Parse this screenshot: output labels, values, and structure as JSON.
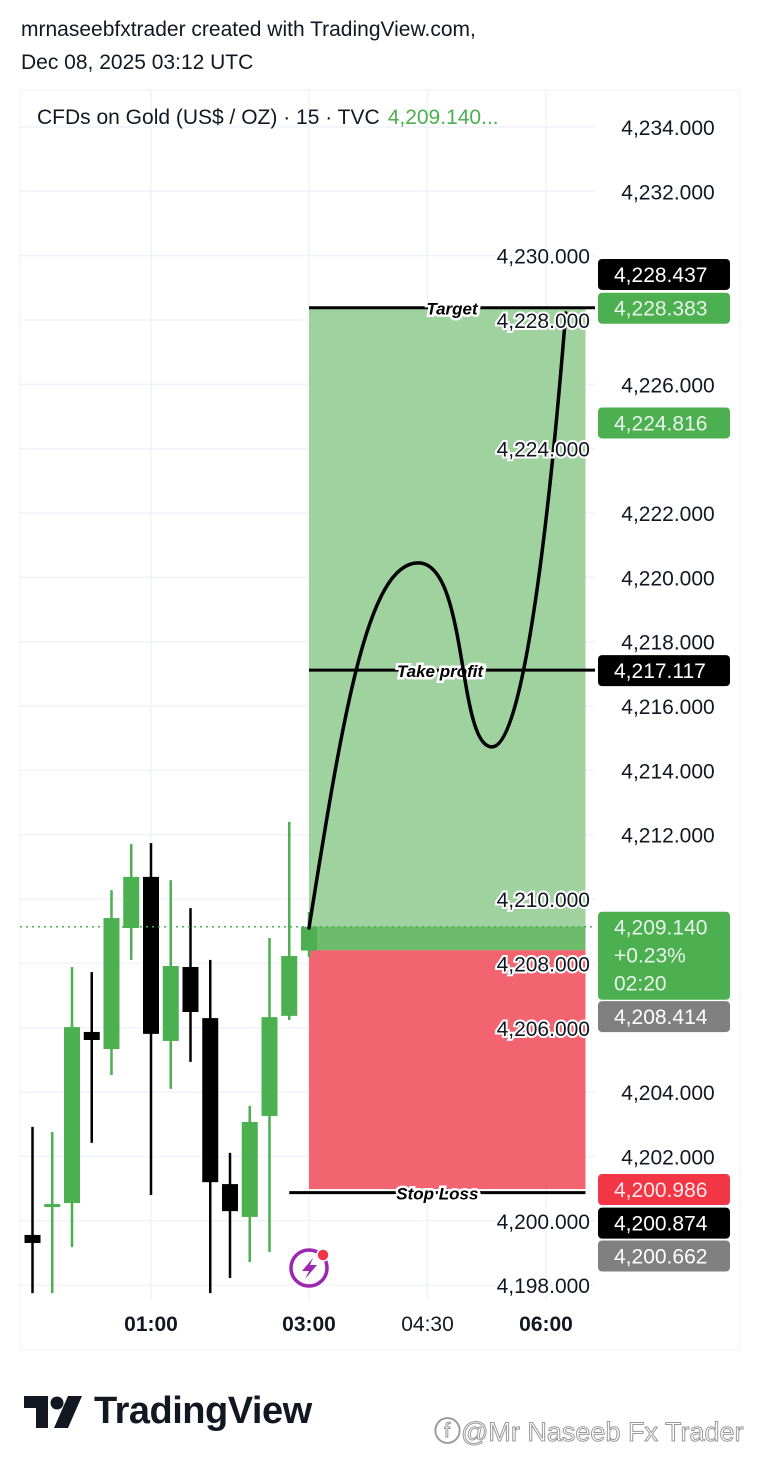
{
  "header": {
    "line1": "mrnaseebfxtrader created with TradingView.com,",
    "line2": "Dec 08, 2025 03:12 UTC"
  },
  "legend": {
    "symbol": "CFDs on Gold (US$ / OZ) · 15 · TVC",
    "price": "4,209.140..."
  },
  "footer": {
    "logo_text": "TradingView",
    "watermark": "@Mr Naseeb Fx Trader"
  },
  "colors": {
    "up": "#4caf50",
    "down": "#000000",
    "profit_zone": "#9fd29e",
    "loss_zone": "#f2646f",
    "stop_label": "#f23645",
    "gray_label": "#808080",
    "grid": "#f0f3fa"
  },
  "icons": {
    "alert": "lightning-bolt-icon"
  },
  "chart_data": {
    "type": "candlestick",
    "timeframe": "15",
    "ylim": [
      4198,
      4234
    ],
    "yticks": [
      "4,234.000",
      "4,232.000",
      "4,230.000",
      "4,228.000",
      "4,226.000",
      "4,224.000",
      "4,222.000",
      "4,220.000",
      "4,218.000",
      "4,216.000",
      "4,214.000",
      "4,212.000",
      "4,210.000",
      "4,208.000",
      "4,206.000",
      "4,204.000",
      "4,202.000",
      "4,200.000",
      "4,198.000"
    ],
    "xticks": [
      {
        "time": "01:00",
        "bold": true
      },
      {
        "time": "03:00",
        "bold": true
      },
      {
        "time": "04:30",
        "bold": false
      },
      {
        "time": "06:00",
        "bold": true
      }
    ],
    "candles": [
      {
        "t": "23:30",
        "o": 4199.56,
        "h": 4202.92,
        "l": 4197.75,
        "c": 4199.31
      },
      {
        "t": "23:45",
        "o": 4200.45,
        "h": 4202.76,
        "l": 4197.75,
        "c": 4200.52
      },
      {
        "t": "00:00",
        "o": 4200.55,
        "h": 4207.89,
        "l": 4199.18,
        "c": 4206.02
      },
      {
        "t": "00:15",
        "o": 4205.87,
        "h": 4207.73,
        "l": 4202.42,
        "c": 4205.62
      },
      {
        "t": "00:30",
        "o": 4205.34,
        "h": 4210.28,
        "l": 4204.53,
        "c": 4209.41
      },
      {
        "t": "00:45",
        "o": 4209.1,
        "h": 4211.71,
        "l": 4208.11,
        "c": 4210.69
      },
      {
        "t": "01:00",
        "o": 4210.69,
        "h": 4211.74,
        "l": 4200.8,
        "c": 4205.81
      },
      {
        "t": "01:15",
        "o": 4205.59,
        "h": 4210.59,
        "l": 4204.1,
        "c": 4207.92
      },
      {
        "t": "01:30",
        "o": 4207.89,
        "h": 4209.72,
        "l": 4204.94,
        "c": 4206.49
      },
      {
        "t": "01:45",
        "o": 4206.3,
        "h": 4208.11,
        "l": 4197.75,
        "c": 4201.2
      },
      {
        "t": "02:00",
        "o": 4201.14,
        "h": 4202.11,
        "l": 4198.22,
        "c": 4200.3
      },
      {
        "t": "02:15",
        "o": 4200.12,
        "h": 4203.57,
        "l": 4198.72,
        "c": 4203.07
      },
      {
        "t": "02:30",
        "o": 4203.26,
        "h": 4208.79,
        "l": 4199.03,
        "c": 4206.33
      },
      {
        "t": "02:45",
        "o": 4206.37,
        "h": 4212.4,
        "l": 4206.24,
        "c": 4208.23
      },
      {
        "t": "03:00",
        "o": 4208.4,
        "h": 4209.6,
        "l": 4208.2,
        "c": 4209.14
      }
    ],
    "current_price": 4209.14,
    "position": {
      "type": "long",
      "start": "03:00",
      "end": "06:30",
      "entry": 4208.414,
      "target": 4228.383,
      "stop": 4200.986
    },
    "levels": [
      {
        "label": "Target",
        "price": 4228.383,
        "from": "03:00",
        "to": "06:45"
      },
      {
        "label": "Take profit",
        "price": 4217.117,
        "from": "03:00",
        "to": "06:45"
      },
      {
        "label": "Stop Loss",
        "price": 4200.874,
        "from": "02:45",
        "to": "06:30"
      }
    ],
    "projection_path": [
      {
        "t": "03:00",
        "p": 4209.1
      },
      {
        "t": "04:23",
        "p": 4220.45
      },
      {
        "t": "05:19",
        "p": 4214.73
      },
      {
        "t": "06:15",
        "p": 4228.22
      }
    ],
    "price_labels": [
      {
        "text": [
          "4,228.437"
        ],
        "price": 4228.437,
        "bg": "#000000",
        "fg": "#ffffff"
      },
      {
        "text": [
          "4,228.383"
        ],
        "price": 4228.383,
        "bg": "#4caf50",
        "fg": "#e8f5e9"
      },
      {
        "text": [
          "4,224.816"
        ],
        "price": 4224.816,
        "bg": "#4caf50",
        "fg": "#e8f5e9"
      },
      {
        "text": [
          "4,217.117"
        ],
        "price": 4217.117,
        "bg": "#000000",
        "fg": "#ffffff"
      },
      {
        "text": [
          "4,209.140",
          "+0.23%",
          "02:20"
        ],
        "price": 4209.14,
        "bg": "#4caf50",
        "fg": "#e8f5e9"
      },
      {
        "text": [
          "4,208.414"
        ],
        "price": 4208.414,
        "bg": "#808080",
        "fg": "#ffffff"
      },
      {
        "text": [
          "4,200.986"
        ],
        "price": 4200.986,
        "bg": "#f23645",
        "fg": "#fde8ea"
      },
      {
        "text": [
          "4,200.874"
        ],
        "price": 4200.874,
        "bg": "#000000",
        "fg": "#ffffff"
      },
      {
        "text": [
          "4,200.662"
        ],
        "price": 4200.662,
        "bg": "#808080",
        "fg": "#ffffff"
      }
    ]
  }
}
